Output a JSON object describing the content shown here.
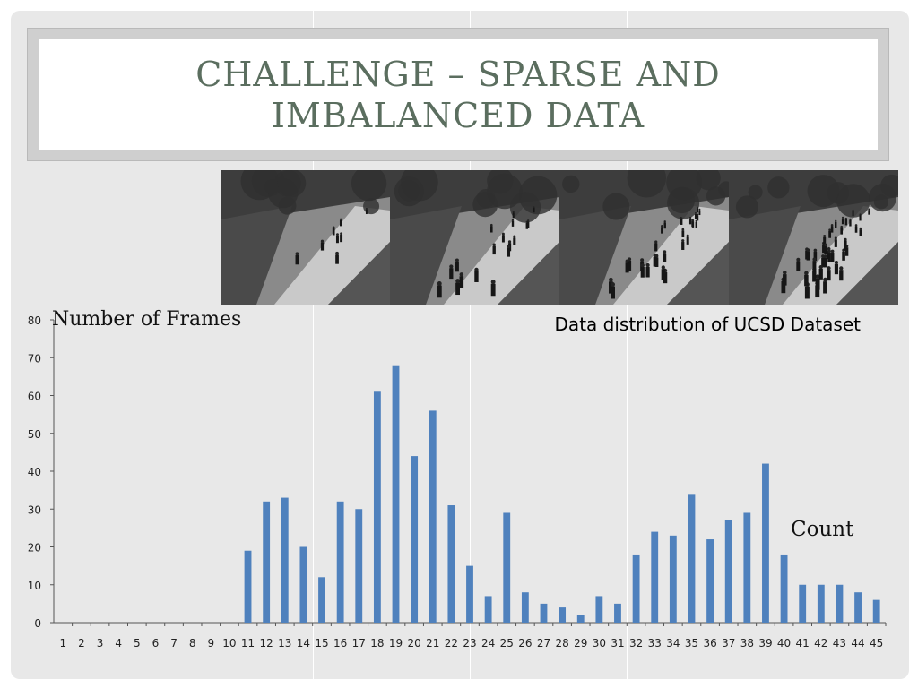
{
  "slide": {
    "title": "CHALLENGE – SPARSE AND\nIMBALANCED DATA",
    "caption": "Data distribution of UCSD Dataset"
  },
  "photos": [
    {
      "name": "crowd-frame-1",
      "people": 8
    },
    {
      "name": "crowd-frame-2",
      "people": 18
    },
    {
      "name": "crowd-frame-3",
      "people": 28
    },
    {
      "name": "crowd-frame-4",
      "people": 42
    }
  ],
  "chart_data": {
    "type": "bar",
    "ylabel": "Number of Frames",
    "xlabel": "Count",
    "ylim": [
      0,
      80
    ],
    "yticks": [
      0,
      10,
      20,
      30,
      40,
      50,
      60,
      70,
      80
    ],
    "categories": [
      "1",
      "2",
      "3",
      "4",
      "5",
      "6",
      "7",
      "8",
      "9",
      "10",
      "11",
      "12",
      "13",
      "14",
      "15",
      "16",
      "17",
      "18",
      "19",
      "20",
      "21",
      "22",
      "23",
      "24",
      "25",
      "26",
      "27",
      "28",
      "29",
      "30",
      "31",
      "32",
      "33",
      "34",
      "35",
      "36",
      "37",
      "38",
      "39",
      "40",
      "41",
      "42",
      "43",
      "44",
      "45"
    ],
    "values": [
      0,
      0,
      0,
      0,
      0,
      0,
      0,
      0,
      0,
      0,
      19,
      32,
      33,
      20,
      12,
      32,
      30,
      61,
      68,
      44,
      56,
      31,
      15,
      7,
      29,
      8,
      5,
      4,
      2,
      7,
      5,
      18,
      24,
      23,
      34,
      22,
      27,
      29,
      42,
      18,
      10,
      10,
      10,
      8,
      6
    ],
    "bar_color": "#4f81bd",
    "grid": false
  }
}
